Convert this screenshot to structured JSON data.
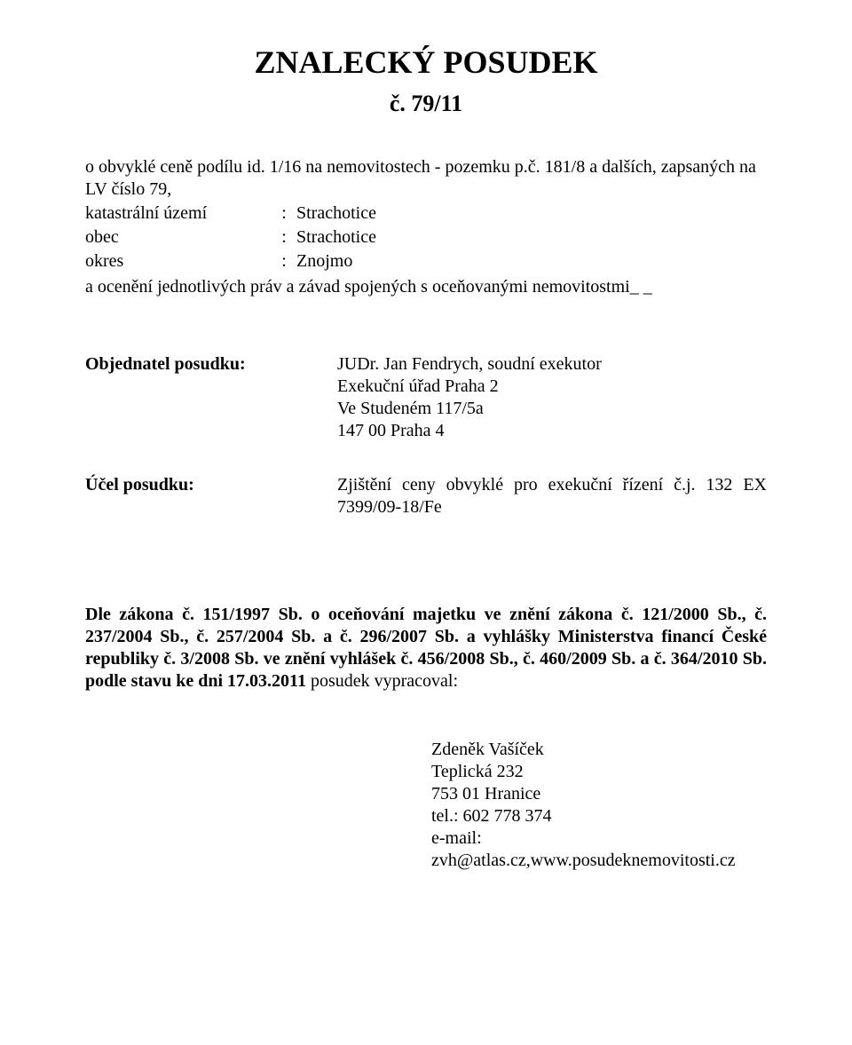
{
  "title": "ZNALECKÝ POSUDEK",
  "subtitle": "č. 79/11",
  "intro_line": "o obvyklé ceně podílu id. 1/16 na nemovitostech - pozemku p.č. 181/8 a dalších, zapsaných na LV číslo 79,",
  "kv": {
    "rows": [
      {
        "label": "katastrální území",
        "value": "Strachotice"
      },
      {
        "label": "obec",
        "value": "Strachotice"
      },
      {
        "label": "okres",
        "value": "Znojmo"
      }
    ]
  },
  "intro_suffix": "a ocenění jednotlivých práv a závad spojených s oceňovanými nemovitostmi_ _",
  "objednatel": {
    "label": "Objednatel posudku:",
    "lines": [
      "JUDr. Jan Fendrych, soudní exekutor",
      "Exekuční úřad Praha 2",
      "Ve Studeném 117/5a",
      "147 00 Praha 4"
    ]
  },
  "ucel": {
    "label": "Účel posudku:",
    "text": "Zjištění ceny obvyklé pro exekuční řízení č.j. 132 EX 7399/09-18/Fe"
  },
  "legal": {
    "prefix_bold": "Dle zákona č. 151/1997 Sb. o oceňování majetku ve znění zákona č. 121/2000 Sb., č. 237/2004 Sb., č. 257/2004 Sb. a č. 296/2007 Sb. a vyhlášky Ministerstva financí České republiky č. 3/2008 Sb. ve znění vyhlášek č. 456/2008 Sb., č. 460/2009 Sb. a č. 364/2010 Sb. podle stavu ke dni 17.03.2011",
    "suffix_plain": " posudek vypracoval:"
  },
  "signature": {
    "lines": [
      "Zdeněk Vašíček",
      "Teplická 232",
      "753 01 Hranice",
      "tel.: 602 778 374",
      "e-mail: zvh@atlas.cz,www.posudeknemovitosti.cz"
    ]
  }
}
